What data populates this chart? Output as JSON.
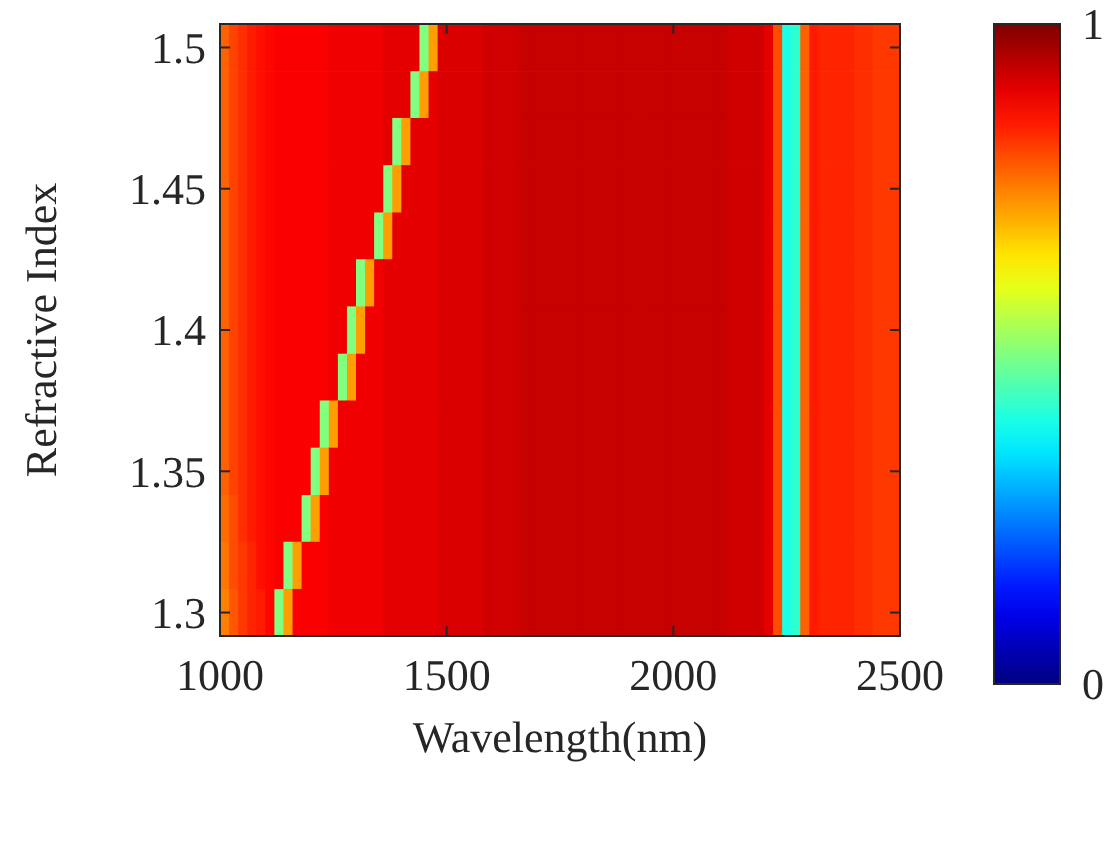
{
  "chart_data": {
    "type": "heatmap",
    "xlabel": "Wavelength(nm)",
    "ylabel": "Refractive Index",
    "x": [
      1010,
      1030,
      1050,
      1070,
      1090,
      1110,
      1130,
      1150,
      1170,
      1190,
      1210,
      1230,
      1250,
      1270,
      1290,
      1310,
      1330,
      1350,
      1370,
      1390,
      1410,
      1430,
      1450,
      1470,
      1490,
      1510,
      1530,
      1550,
      1570,
      1590,
      1610,
      1630,
      1650,
      1670,
      1690,
      1710,
      1730,
      1750,
      1770,
      1790,
      1810,
      1830,
      1850,
      1870,
      1890,
      1910,
      1930,
      1950,
      1970,
      1990,
      2010,
      2030,
      2050,
      2070,
      2090,
      2110,
      2130,
      2150,
      2170,
      2190,
      2210,
      2230,
      2250,
      2270,
      2290,
      2310,
      2330,
      2350,
      2370,
      2390,
      2410,
      2430,
      2450,
      2470,
      2490
    ],
    "y": [
      1.5,
      1.4833,
      1.4667,
      1.45,
      1.4333,
      1.4167,
      1.4,
      1.3833,
      1.3667,
      1.35,
      1.3333,
      1.3167,
      1.3
    ],
    "xlim": [
      1000,
      2500
    ],
    "xticks": [
      1000,
      1500,
      2000,
      2500
    ],
    "ylim": [
      1.2917,
      1.5083
    ],
    "yticks": [
      1.3,
      1.35,
      1.4,
      1.45,
      1.5
    ],
    "clim": [
      0,
      1
    ],
    "cticks": [
      0,
      1
    ],
    "cells": [
      [
        0.78,
        0.81,
        0.83,
        0.85,
        0.86,
        0.87,
        0.88,
        0.88,
        0.88,
        0.88,
        0.88,
        0.88,
        0.89,
        0.89,
        0.89,
        0.89,
        0.89,
        0.89,
        0.9,
        0.9,
        0.9,
        0.9,
        0.5,
        0.72,
        0.91,
        0.91,
        0.91,
        0.91,
        0.91,
        0.92,
        0.92,
        0.92,
        0.92,
        0.93,
        0.93,
        0.93,
        0.93,
        0.93,
        0.93,
        0.93,
        0.93,
        0.93,
        0.93,
        0.93,
        0.93,
        0.93,
        0.93,
        0.93,
        0.93,
        0.93,
        0.93,
        0.93,
        0.93,
        0.93,
        0.93,
        0.93,
        0.92,
        0.92,
        0.92,
        0.92,
        0.9,
        0.8,
        0.4,
        0.42,
        0.78,
        0.85,
        0.84,
        0.84,
        0.84,
        0.84,
        0.83,
        0.83,
        0.82,
        0.82,
        0.82
      ],
      [
        0.78,
        0.81,
        0.83,
        0.85,
        0.86,
        0.87,
        0.88,
        0.88,
        0.88,
        0.88,
        0.88,
        0.88,
        0.89,
        0.89,
        0.89,
        0.89,
        0.89,
        0.89,
        0.9,
        0.9,
        0.9,
        0.5,
        0.72,
        0.9,
        0.91,
        0.91,
        0.91,
        0.91,
        0.91,
        0.92,
        0.92,
        0.92,
        0.92,
        0.93,
        0.93,
        0.93,
        0.93,
        0.93,
        0.93,
        0.93,
        0.93,
        0.93,
        0.93,
        0.93,
        0.93,
        0.93,
        0.93,
        0.93,
        0.93,
        0.93,
        0.93,
        0.93,
        0.93,
        0.93,
        0.93,
        0.93,
        0.92,
        0.92,
        0.92,
        0.92,
        0.9,
        0.8,
        0.4,
        0.42,
        0.78,
        0.85,
        0.84,
        0.84,
        0.84,
        0.84,
        0.83,
        0.83,
        0.82,
        0.82,
        0.82
      ],
      [
        0.78,
        0.81,
        0.83,
        0.85,
        0.86,
        0.87,
        0.88,
        0.88,
        0.88,
        0.88,
        0.88,
        0.88,
        0.89,
        0.89,
        0.89,
        0.89,
        0.89,
        0.89,
        0.9,
        0.5,
        0.72,
        0.9,
        0.9,
        0.9,
        0.91,
        0.91,
        0.91,
        0.91,
        0.91,
        0.92,
        0.92,
        0.92,
        0.92,
        0.93,
        0.93,
        0.93,
        0.93,
        0.93,
        0.93,
        0.93,
        0.93,
        0.93,
        0.93,
        0.93,
        0.93,
        0.93,
        0.93,
        0.93,
        0.93,
        0.93,
        0.93,
        0.93,
        0.93,
        0.93,
        0.93,
        0.93,
        0.92,
        0.92,
        0.92,
        0.92,
        0.9,
        0.8,
        0.4,
        0.42,
        0.78,
        0.85,
        0.84,
        0.84,
        0.84,
        0.84,
        0.83,
        0.83,
        0.82,
        0.82,
        0.82
      ],
      [
        0.78,
        0.81,
        0.83,
        0.85,
        0.86,
        0.87,
        0.88,
        0.88,
        0.88,
        0.88,
        0.88,
        0.88,
        0.89,
        0.89,
        0.89,
        0.89,
        0.89,
        0.89,
        0.5,
        0.72,
        0.9,
        0.9,
        0.9,
        0.9,
        0.91,
        0.91,
        0.91,
        0.91,
        0.91,
        0.92,
        0.92,
        0.92,
        0.92,
        0.93,
        0.93,
        0.93,
        0.93,
        0.93,
        0.93,
        0.93,
        0.93,
        0.93,
        0.93,
        0.93,
        0.93,
        0.93,
        0.93,
        0.93,
        0.93,
        0.93,
        0.93,
        0.93,
        0.93,
        0.93,
        0.93,
        0.93,
        0.92,
        0.92,
        0.92,
        0.92,
        0.9,
        0.8,
        0.4,
        0.42,
        0.78,
        0.85,
        0.84,
        0.84,
        0.84,
        0.84,
        0.83,
        0.83,
        0.82,
        0.82,
        0.82
      ],
      [
        0.78,
        0.81,
        0.83,
        0.85,
        0.86,
        0.87,
        0.88,
        0.88,
        0.88,
        0.88,
        0.88,
        0.88,
        0.89,
        0.89,
        0.89,
        0.89,
        0.89,
        0.5,
        0.72,
        0.9,
        0.9,
        0.9,
        0.9,
        0.9,
        0.91,
        0.91,
        0.91,
        0.91,
        0.91,
        0.92,
        0.92,
        0.92,
        0.92,
        0.93,
        0.93,
        0.93,
        0.93,
        0.93,
        0.93,
        0.93,
        0.93,
        0.93,
        0.93,
        0.93,
        0.93,
        0.93,
        0.93,
        0.93,
        0.93,
        0.93,
        0.93,
        0.93,
        0.93,
        0.93,
        0.93,
        0.93,
        0.92,
        0.92,
        0.92,
        0.92,
        0.9,
        0.8,
        0.4,
        0.42,
        0.78,
        0.85,
        0.84,
        0.84,
        0.84,
        0.84,
        0.83,
        0.83,
        0.82,
        0.82,
        0.82
      ],
      [
        0.78,
        0.81,
        0.83,
        0.85,
        0.86,
        0.87,
        0.88,
        0.88,
        0.88,
        0.88,
        0.88,
        0.88,
        0.89,
        0.89,
        0.89,
        0.5,
        0.72,
        0.89,
        0.9,
        0.9,
        0.9,
        0.9,
        0.9,
        0.9,
        0.91,
        0.91,
        0.91,
        0.91,
        0.91,
        0.92,
        0.92,
        0.92,
        0.92,
        0.93,
        0.93,
        0.93,
        0.93,
        0.93,
        0.93,
        0.93,
        0.93,
        0.93,
        0.93,
        0.93,
        0.93,
        0.93,
        0.93,
        0.93,
        0.93,
        0.93,
        0.93,
        0.93,
        0.93,
        0.93,
        0.93,
        0.93,
        0.92,
        0.92,
        0.92,
        0.92,
        0.9,
        0.8,
        0.4,
        0.42,
        0.78,
        0.85,
        0.84,
        0.84,
        0.84,
        0.84,
        0.83,
        0.83,
        0.82,
        0.82,
        0.82
      ],
      [
        0.78,
        0.81,
        0.83,
        0.85,
        0.86,
        0.87,
        0.88,
        0.88,
        0.88,
        0.88,
        0.88,
        0.88,
        0.89,
        0.89,
        0.5,
        0.72,
        0.89,
        0.89,
        0.9,
        0.9,
        0.9,
        0.9,
        0.9,
        0.9,
        0.91,
        0.91,
        0.91,
        0.91,
        0.91,
        0.92,
        0.92,
        0.92,
        0.92,
        0.93,
        0.93,
        0.93,
        0.93,
        0.93,
        0.93,
        0.93,
        0.93,
        0.93,
        0.93,
        0.93,
        0.93,
        0.93,
        0.93,
        0.93,
        0.93,
        0.93,
        0.93,
        0.93,
        0.93,
        0.93,
        0.93,
        0.93,
        0.92,
        0.92,
        0.92,
        0.92,
        0.9,
        0.8,
        0.4,
        0.42,
        0.78,
        0.85,
        0.84,
        0.84,
        0.84,
        0.84,
        0.83,
        0.83,
        0.82,
        0.82,
        0.82
      ],
      [
        0.78,
        0.81,
        0.83,
        0.85,
        0.86,
        0.87,
        0.88,
        0.88,
        0.88,
        0.88,
        0.88,
        0.88,
        0.89,
        0.5,
        0.72,
        0.89,
        0.89,
        0.89,
        0.9,
        0.9,
        0.9,
        0.9,
        0.9,
        0.9,
        0.91,
        0.91,
        0.91,
        0.91,
        0.91,
        0.92,
        0.92,
        0.92,
        0.92,
        0.93,
        0.93,
        0.93,
        0.93,
        0.93,
        0.93,
        0.93,
        0.93,
        0.93,
        0.93,
        0.93,
        0.93,
        0.93,
        0.93,
        0.93,
        0.93,
        0.93,
        0.93,
        0.93,
        0.93,
        0.93,
        0.93,
        0.93,
        0.92,
        0.92,
        0.92,
        0.92,
        0.9,
        0.8,
        0.4,
        0.42,
        0.78,
        0.85,
        0.84,
        0.84,
        0.84,
        0.84,
        0.83,
        0.83,
        0.82,
        0.82,
        0.82
      ],
      [
        0.78,
        0.81,
        0.83,
        0.85,
        0.86,
        0.87,
        0.88,
        0.88,
        0.88,
        0.88,
        0.88,
        0.5,
        0.72,
        0.89,
        0.89,
        0.89,
        0.89,
        0.89,
        0.9,
        0.9,
        0.9,
        0.9,
        0.9,
        0.9,
        0.91,
        0.91,
        0.91,
        0.91,
        0.91,
        0.92,
        0.92,
        0.92,
        0.92,
        0.93,
        0.93,
        0.93,
        0.93,
        0.93,
        0.93,
        0.93,
        0.93,
        0.93,
        0.93,
        0.93,
        0.93,
        0.93,
        0.93,
        0.93,
        0.93,
        0.93,
        0.93,
        0.93,
        0.93,
        0.93,
        0.93,
        0.93,
        0.92,
        0.92,
        0.92,
        0.92,
        0.9,
        0.8,
        0.4,
        0.42,
        0.78,
        0.85,
        0.84,
        0.84,
        0.84,
        0.84,
        0.83,
        0.83,
        0.82,
        0.82,
        0.82
      ],
      [
        0.78,
        0.81,
        0.83,
        0.85,
        0.86,
        0.87,
        0.88,
        0.88,
        0.88,
        0.88,
        0.5,
        0.72,
        0.89,
        0.89,
        0.89,
        0.89,
        0.89,
        0.89,
        0.9,
        0.9,
        0.9,
        0.9,
        0.9,
        0.9,
        0.91,
        0.91,
        0.91,
        0.91,
        0.91,
        0.92,
        0.92,
        0.92,
        0.92,
        0.93,
        0.93,
        0.93,
        0.93,
        0.93,
        0.93,
        0.93,
        0.93,
        0.93,
        0.93,
        0.93,
        0.93,
        0.93,
        0.93,
        0.93,
        0.93,
        0.93,
        0.93,
        0.93,
        0.93,
        0.93,
        0.93,
        0.93,
        0.92,
        0.92,
        0.92,
        0.92,
        0.9,
        0.8,
        0.4,
        0.42,
        0.78,
        0.85,
        0.84,
        0.84,
        0.84,
        0.84,
        0.83,
        0.83,
        0.82,
        0.82,
        0.82
      ],
      [
        0.77,
        0.8,
        0.83,
        0.85,
        0.86,
        0.87,
        0.88,
        0.88,
        0.88,
        0.5,
        0.72,
        0.88,
        0.89,
        0.89,
        0.89,
        0.89,
        0.89,
        0.89,
        0.9,
        0.9,
        0.9,
        0.9,
        0.9,
        0.9,
        0.91,
        0.91,
        0.91,
        0.91,
        0.91,
        0.92,
        0.92,
        0.92,
        0.92,
        0.93,
        0.93,
        0.93,
        0.93,
        0.93,
        0.93,
        0.93,
        0.93,
        0.93,
        0.93,
        0.93,
        0.93,
        0.93,
        0.93,
        0.93,
        0.93,
        0.93,
        0.93,
        0.93,
        0.93,
        0.93,
        0.93,
        0.93,
        0.92,
        0.92,
        0.92,
        0.92,
        0.9,
        0.8,
        0.4,
        0.42,
        0.78,
        0.85,
        0.84,
        0.84,
        0.84,
        0.84,
        0.83,
        0.83,
        0.82,
        0.82,
        0.82
      ],
      [
        0.76,
        0.8,
        0.82,
        0.84,
        0.86,
        0.87,
        0.88,
        0.5,
        0.72,
        0.88,
        0.88,
        0.88,
        0.89,
        0.89,
        0.89,
        0.89,
        0.89,
        0.89,
        0.9,
        0.9,
        0.9,
        0.9,
        0.9,
        0.9,
        0.91,
        0.91,
        0.91,
        0.91,
        0.91,
        0.92,
        0.92,
        0.92,
        0.92,
        0.93,
        0.93,
        0.93,
        0.93,
        0.93,
        0.93,
        0.93,
        0.93,
        0.93,
        0.93,
        0.93,
        0.93,
        0.93,
        0.93,
        0.93,
        0.93,
        0.93,
        0.93,
        0.93,
        0.93,
        0.93,
        0.93,
        0.93,
        0.92,
        0.92,
        0.92,
        0.92,
        0.9,
        0.8,
        0.4,
        0.42,
        0.78,
        0.85,
        0.84,
        0.84,
        0.84,
        0.84,
        0.83,
        0.83,
        0.82,
        0.82,
        0.82
      ],
      [
        0.75,
        0.79,
        0.82,
        0.84,
        0.85,
        0.87,
        0.5,
        0.72,
        0.88,
        0.88,
        0.88,
        0.88,
        0.89,
        0.89,
        0.89,
        0.89,
        0.89,
        0.89,
        0.9,
        0.9,
        0.9,
        0.9,
        0.9,
        0.9,
        0.91,
        0.91,
        0.91,
        0.91,
        0.91,
        0.92,
        0.92,
        0.92,
        0.92,
        0.93,
        0.93,
        0.93,
        0.93,
        0.93,
        0.93,
        0.93,
        0.93,
        0.93,
        0.93,
        0.93,
        0.93,
        0.93,
        0.93,
        0.93,
        0.93,
        0.93,
        0.93,
        0.93,
        0.93,
        0.93,
        0.93,
        0.93,
        0.92,
        0.92,
        0.92,
        0.92,
        0.9,
        0.8,
        0.4,
        0.42,
        0.78,
        0.85,
        0.84,
        0.84,
        0.84,
        0.84,
        0.83,
        0.83,
        0.82,
        0.82,
        0.82
      ]
    ]
  }
}
